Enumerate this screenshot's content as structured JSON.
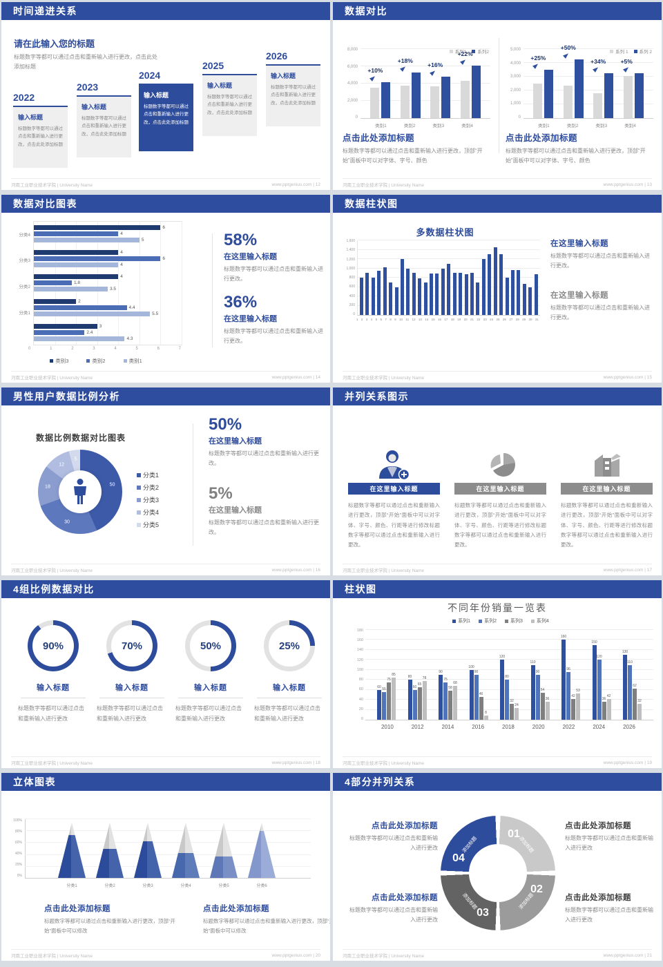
{
  "footer_left": "河南工业职业技术学院 | University Name",
  "theme": {
    "header_blue": "#2e4d9e",
    "accent_blue": "#2e4c9c",
    "bar_blue": "#2e509e",
    "bar_gray": "#d9d9d9",
    "text_gray": "#8a8a8a"
  },
  "icons": {
    "growth_arrow": "arrow-up-right-icon",
    "male": "male-person-icon",
    "person_add": "person-add-icon",
    "pie": "pie-chart-icon",
    "building": "building-icon"
  },
  "slides": {
    "timeline": {
      "header": "时间递进关系",
      "footer_right": "www.pptgenius.com | 12",
      "intro_title": "请在此输入您的标题",
      "intro_text": "标题数字等都可以通过点击和重新输入进行更改，点击此处添加标题",
      "cards": [
        {
          "year": "2022",
          "title": "输入标题",
          "text": "标题数字等都可以通过点击和重新输入进行更改，点击此处添加标题"
        },
        {
          "year": "2023",
          "title": "输入标题",
          "text": "标题数字等都可以通过点击和重新输入进行更改，点击此处添加标题"
        },
        {
          "year": "2024",
          "title": "输入标题",
          "text": "标题数字等都可以通过点击和重新输入进行更改，点击此处添加标题"
        },
        {
          "year": "2025",
          "title": "输入标题",
          "text": "标题数字等都可以通过点击和重新输入进行更改，点击此处添加标题"
        },
        {
          "year": "2026",
          "title": "输入标题",
          "text": "标题数字等都可以通过点击和重新输入进行更改，点击此处添加标题"
        }
      ]
    },
    "compare": {
      "header": "数据对比",
      "footer_right": "www.pptgenius.com | 13",
      "blocks": [
        {
          "title": "点击此处添加标题",
          "text": "标题数字等都可以通过点击和重新输入进行更改，顶部“开始”面板中可以对字体、字号、颜色"
        },
        {
          "title": "点击此处添加标题",
          "text": "标题数字等都可以通过点击和重新输入进行更改，顶部“开始”面板中可以对字体、字号、颜色"
        }
      ]
    },
    "hbar": {
      "header": "数据对比图表",
      "footer_right": "www.pptgenius.com | 14",
      "stats": [
        {
          "pct": "58%",
          "title": "在这里输入标题",
          "text": "标题数字等都可以通过点击和重新输入进行更改。"
        },
        {
          "pct": "36%",
          "title": "在这里输入标题",
          "text": "标题数字等都可以通过点击和重新输入进行更改。"
        }
      ]
    },
    "multicol": {
      "header": "数据柱状图",
      "footer_right": "www.pptgenius.com | 15",
      "blocks": [
        {
          "title": "在这里输入标题",
          "text": "标题数字等都可以通过点击和重新输入进行更改。"
        },
        {
          "title": "在这里输入标题",
          "text": "标题数字等都可以通过点击和重新输入进行更改。"
        }
      ]
    },
    "donut": {
      "header": "男性用户数据比例分析",
      "footer_right": "www.pptgenius.com | 16",
      "stats": [
        {
          "pct": "50%",
          "title": "在这里输入标题",
          "text": "标题数字等都可以通过点击和重新输入进行更改。"
        },
        {
          "pct": "5%",
          "title": "在这里输入标题",
          "text": "标题数字等都可以通过点击和重新输入进行更改。"
        }
      ]
    },
    "parallel": {
      "header": "并列关系图示",
      "footer_right": "www.pptgenius.com | 17",
      "items": [
        {
          "title": "在这里输入标题",
          "text": "标题数字等都可以通过点击和重新输入进行更改，顶部“开始”面板中可以对字体、字号、颜色、行距等进行修改标题数字等都可以通过点击和重新输入进行更改。"
        },
        {
          "title": "在这里输入标题",
          "text": "标题数字等都可以通过点击和重新输入进行更改，顶部“开始”面板中可以对字体、字号、颜色、行距等进行修改标题数字等都可以通过点击和重新输入进行更改。"
        },
        {
          "title": "在这里输入标题",
          "text": "标题数字等都可以通过点击和重新输入进行更改，顶部“开始”面板中可以对字体、字号、颜色、行距等进行修改标题数字等都可以通过点击和重新输入进行更改。"
        }
      ]
    },
    "gauges": {
      "header": "4组比例数据对比",
      "footer_right": "www.pptgenius.com | 18",
      "items": [
        {
          "pct": "90%",
          "title": "输入标题",
          "text": "标题数字等都可以通过点击和重新输入进行更改"
        },
        {
          "pct": "70%",
          "title": "输入标题",
          "text": "标题数字等都可以通过点击和重新输入进行更改"
        },
        {
          "pct": "50%",
          "title": "输入标题",
          "text": "标题数字等都可以通过点击和重新输入进行更改"
        },
        {
          "pct": "25%",
          "title": "输入标题",
          "text": "标题数字等都可以通过点击和重新输入进行更改"
        }
      ]
    },
    "grouped": {
      "header": "柱状图",
      "footer_right": "www.pptgenius.com | 19"
    },
    "cones": {
      "header": "立体图表",
      "footer_right": "www.pptgenius.com | 20",
      "blocks": [
        {
          "title": "点击此处添加标题",
          "text": "标题数字等都可以通过点击和重新输入进行更改，顶部“开始”面板中可以修改"
        },
        {
          "title": "点击此处添加标题",
          "text": "标题数字等都可以通过点击和重新输入进行更改，顶部“开始”面板中可以修改"
        }
      ]
    },
    "ring": {
      "header": "4部分并列关系",
      "footer_right": "www.pptgenius.com | 21",
      "segments": [
        {
          "num": "01",
          "label": "添加标题",
          "color": "#c9c9c9"
        },
        {
          "num": "02",
          "label": "添加标题",
          "color": "#9b9b9b"
        },
        {
          "num": "03",
          "label": "添加标题",
          "color": "#636363"
        },
        {
          "num": "04",
          "label": "添加标题",
          "color": "#2e4c9c"
        }
      ],
      "blocks": [
        {
          "title": "点击此处添加标题",
          "text": "标题数字等都可以通过点击和重新输入进行更改"
        },
        {
          "title": "点击此处添加标题",
          "text": "标题数字等都可以通过点击和重新输入进行更改"
        },
        {
          "title": "点击此处添加标题",
          "text": "标题数字等都可以通过点击和重新输入进行更改"
        },
        {
          "title": "点击此处添加标题",
          "text": "标题数字等都可以通过点击和重新输入进行更改"
        }
      ]
    }
  },
  "chart_data": [
    {
      "id": "compare-left",
      "type": "bar",
      "legend": [
        "系列1",
        "系列2"
      ],
      "categories": [
        "类别1",
        "类别2",
        "类别3",
        "类别4"
      ],
      "series": [
        {
          "name": "系列1",
          "color": "#d9d9d9",
          "values": [
            3500,
            3800,
            3700,
            4300
          ]
        },
        {
          "name": "系列2",
          "color": "#2e509e",
          "values": [
            4200,
            5300,
            4800,
            6100
          ]
        }
      ],
      "growth_labels": [
        "+10%",
        "+18%",
        "+16%",
        "+22%"
      ],
      "ylim": [
        0,
        8000
      ],
      "yticks": [
        0,
        2000,
        4000,
        6000,
        8000
      ],
      "grid": true,
      "legend_position": "top-right"
    },
    {
      "id": "compare-right",
      "type": "bar",
      "legend": [
        "系列 1",
        "系列 2"
      ],
      "categories": [
        "类别1",
        "类别2",
        "类别3",
        "类别4"
      ],
      "series": [
        {
          "name": "系列 1",
          "color": "#d9d9d9",
          "values": [
            2500,
            2350,
            1800,
            3050
          ]
        },
        {
          "name": "系列 2",
          "color": "#2e509e",
          "values": [
            3500,
            4250,
            3250,
            3250
          ]
        }
      ],
      "growth_labels": [
        "+25%",
        "+50%",
        "+34%",
        "+5%"
      ],
      "ylim": [
        0,
        5000
      ],
      "yticks": [
        0,
        1000,
        2000,
        3000,
        4000,
        5000
      ],
      "grid": true,
      "legend_position": "top-right"
    },
    {
      "id": "hbar",
      "type": "bar-horizontal",
      "categories": [
        "分类4",
        "分类3",
        "分类2",
        "分类1",
        ""
      ],
      "series": [
        {
          "name": "类别3",
          "color": "#1f3a6e",
          "values": [
            6,
            4,
            4,
            2,
            3
          ]
        },
        {
          "name": "类别2",
          "color": "#4a6db5",
          "values": [
            4,
            6,
            1.8,
            4.4,
            2.4
          ]
        },
        {
          "name": "类别1",
          "color": "#a4b6da",
          "values": [
            5,
            4,
            3.5,
            5.5,
            4.3
          ]
        }
      ],
      "xlim": [
        0,
        7
      ],
      "xticks": [
        0,
        1,
        2,
        3,
        4,
        5,
        6,
        7
      ],
      "grid": true,
      "legend_position": "bottom"
    },
    {
      "id": "multi-col",
      "type": "bar",
      "title": "多数据柱状图",
      "x_labels": [
        "1",
        "2",
        "3",
        "4",
        "5",
        "6",
        "7",
        "8",
        "9",
        "10",
        "11",
        "12",
        "13",
        "14",
        "15",
        "16",
        "17",
        "18",
        "19",
        "20",
        "21",
        "22",
        "23",
        "24",
        "25",
        "26",
        "27",
        "28",
        "29",
        "30",
        "31"
      ],
      "values": [
        800,
        900,
        800,
        950,
        1020,
        700,
        600,
        1200,
        990,
        900,
        780,
        700,
        890,
        890,
        1000,
        1100,
        900,
        900,
        880,
        900,
        700,
        1200,
        1300,
        1450,
        1300,
        800,
        960,
        970,
        660,
        590,
        870
      ],
      "color": "#2e509e",
      "ylim": [
        0,
        1600
      ],
      "yticks": [
        0,
        200,
        400,
        600,
        800,
        1000,
        1200,
        1400,
        1600
      ],
      "grid": true
    },
    {
      "id": "donut",
      "type": "pie",
      "title": "数据比例数据对比图表",
      "labels": [
        "分类1",
        "分类2",
        "分类3",
        "分类4",
        "分类5"
      ],
      "values": [
        50,
        30,
        18,
        12,
        5
      ],
      "colors": [
        "#3d5aa8",
        "#5d78bd",
        "#8b9dcf",
        "#b0bde0",
        "#d3daee"
      ],
      "legend_position": "right"
    },
    {
      "id": "gauges",
      "type": "pie",
      "values": [
        90,
        70,
        50,
        25
      ],
      "color": "#2e4c9c",
      "track": "#e2e2e2"
    },
    {
      "id": "grouped",
      "type": "bar",
      "title": "不同年份销量一览表",
      "categories": [
        "2010",
        "2012",
        "2014",
        "2016",
        "2018",
        "2020",
        "2022",
        "2024",
        "2026"
      ],
      "series": [
        {
          "name": "系列1",
          "color": "#2e509e",
          "values": [
            60,
            80,
            90,
            100,
            120,
            110,
            160,
            150,
            130
          ]
        },
        {
          "name": "系列2",
          "color": "#4f74bc",
          "values": [
            55,
            60,
            75,
            90,
            80,
            90,
            96,
            120,
            110
          ]
        },
        {
          "name": "系列3",
          "color": "#7f7f7f",
          "values": [
            75,
            65,
            58,
            46,
            32,
            54,
            42,
            36,
            62
          ]
        },
        {
          "name": "系列4",
          "color": "#bfbfbf",
          "values": [
            85,
            78,
            68,
            8,
            24,
            36,
            53,
            42,
            32
          ]
        }
      ],
      "ylim": [
        0,
        180
      ],
      "ytick_step": 20,
      "grid": true,
      "legend_position": "top"
    },
    {
      "id": "cones",
      "type": "bar",
      "categories": [
        "分类1",
        "分类2",
        "分类3",
        "分类4",
        "分类5",
        "分类6"
      ],
      "values": [
        73,
        50,
        62,
        42,
        36,
        80
      ],
      "unit": "%",
      "colors": [
        [
          "#2c4b9b",
          "#4563ab"
        ],
        [
          "#2c4b9b",
          "#4563ab"
        ],
        [
          "#2c4b9b",
          "#4563ab"
        ],
        [
          "#4868ad",
          "#5f7cba"
        ],
        [
          "#5d77b7",
          "#7890c5"
        ],
        [
          "#8397cd",
          "#9cacd8"
        ]
      ],
      "yticks": [
        "0%",
        "20%",
        "40%",
        "60%",
        "80%",
        "100%"
      ]
    }
  ]
}
